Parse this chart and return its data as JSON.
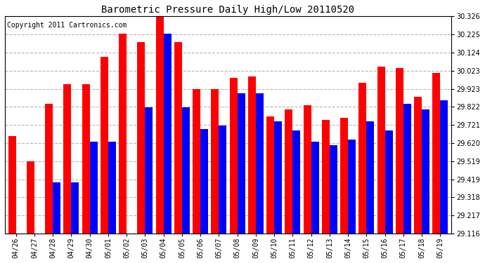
{
  "title": "Barometric Pressure Daily High/Low 20110520",
  "copyright": "Copyright 2011 Cartronics.com",
  "categories": [
    "04/26",
    "04/27",
    "04/28",
    "04/29",
    "04/30",
    "05/01",
    "05/02",
    "05/03",
    "05/04",
    "05/05",
    "05/06",
    "05/07",
    "05/08",
    "05/09",
    "05/10",
    "05/11",
    "05/12",
    "05/13",
    "05/14",
    "05/15",
    "05/16",
    "05/17",
    "05/18",
    "05/19"
  ],
  "high_values": [
    29.66,
    29.519,
    29.84,
    29.95,
    29.95,
    30.1,
    30.23,
    30.185,
    30.36,
    30.185,
    29.92,
    29.92,
    29.985,
    29.99,
    29.77,
    29.81,
    29.83,
    29.75,
    29.76,
    29.955,
    30.045,
    30.04,
    29.88,
    30.01
  ],
  "low_values": [
    29.116,
    29.116,
    29.4,
    29.4,
    29.63,
    29.63,
    29.116,
    29.82,
    30.23,
    29.82,
    29.7,
    29.72,
    29.9,
    29.9,
    29.74,
    29.69,
    29.63,
    29.61,
    29.64,
    29.74,
    29.69,
    29.84,
    29.81,
    29.86
  ],
  "high_color": "#FF0000",
  "low_color": "#0000FF",
  "background_color": "#FFFFFF",
  "plot_background": "#FFFFFF",
  "grid_color": "#AAAAAA",
  "title_fontsize": 10,
  "copyright_fontsize": 7,
  "tick_fontsize": 7,
  "ymin": 29.116,
  "ymax": 30.326,
  "yticks": [
    29.116,
    29.217,
    29.318,
    29.419,
    29.519,
    29.62,
    29.721,
    29.822,
    29.923,
    30.023,
    30.124,
    30.225,
    30.326
  ]
}
